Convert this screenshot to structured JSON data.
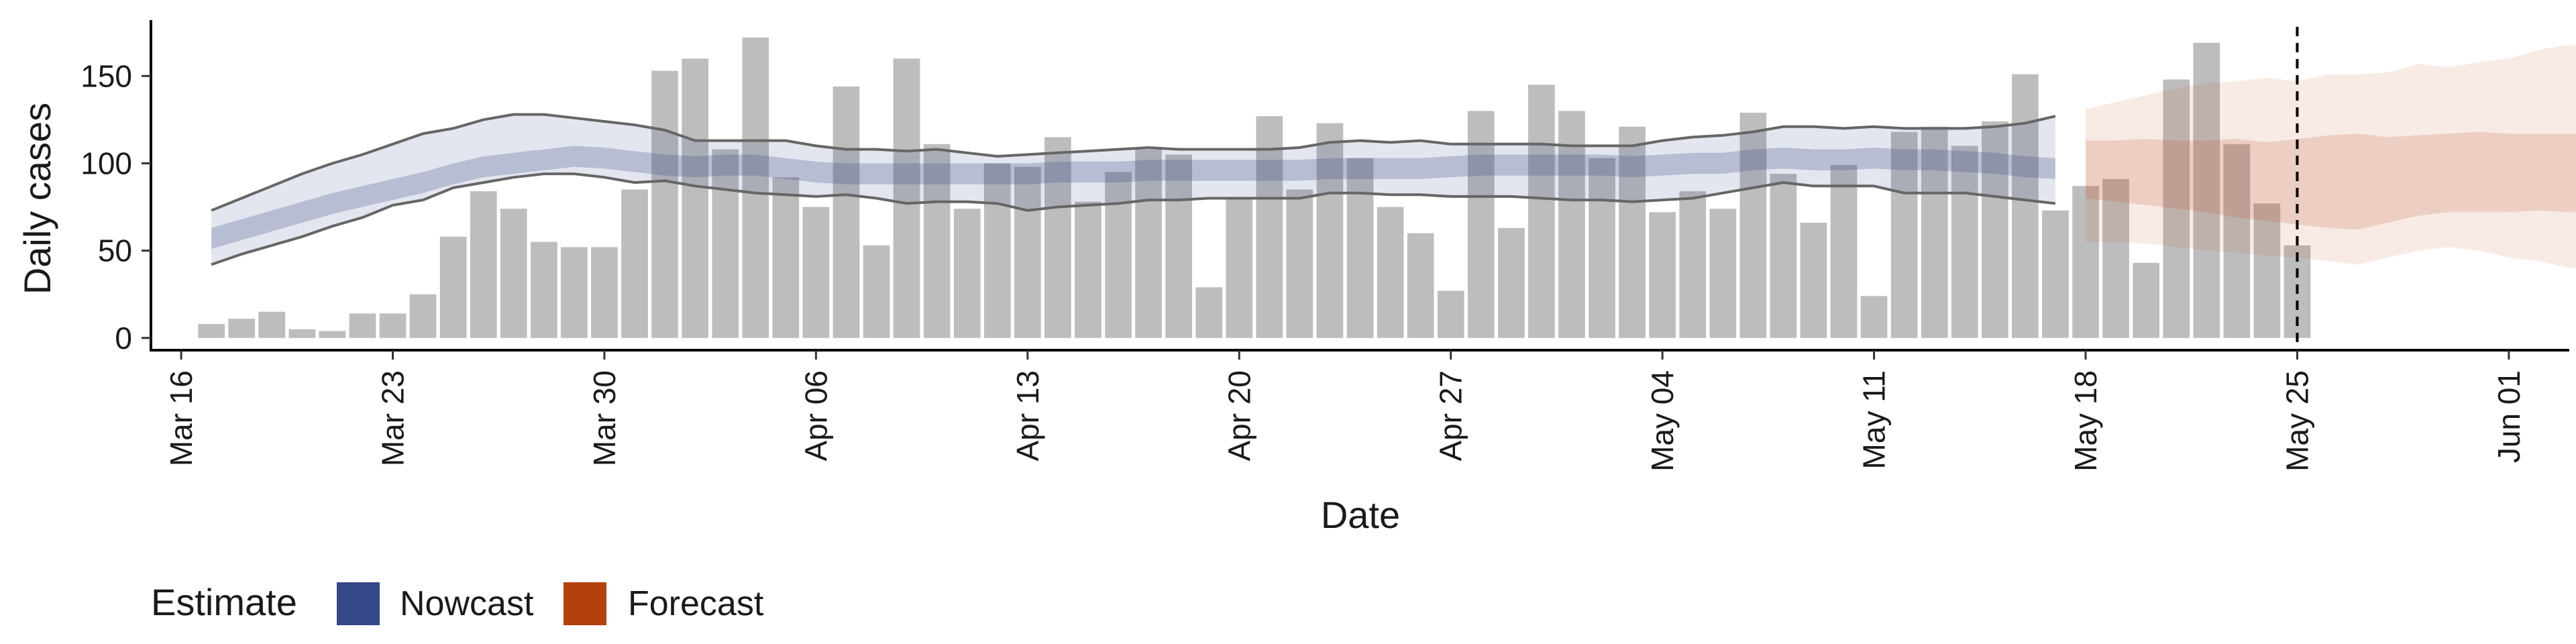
{
  "chart_data": {
    "type": "bar",
    "xlabel": "Date",
    "ylabel": "Daily cases",
    "x_range": [
      "2020-03-15",
      "2020-06-03"
    ],
    "ylim": [
      -7,
      182
    ],
    "y_ticks": [
      0,
      50,
      100,
      150
    ],
    "x_ticks": [
      {
        "date": "2020-03-16",
        "label": "Mar 16"
      },
      {
        "date": "2020-03-23",
        "label": "Mar 23"
      },
      {
        "date": "2020-03-30",
        "label": "Mar 30"
      },
      {
        "date": "2020-04-06",
        "label": "Apr 06"
      },
      {
        "date": "2020-04-13",
        "label": "Apr 13"
      },
      {
        "date": "2020-04-20",
        "label": "Apr 20"
      },
      {
        "date": "2020-04-27",
        "label": "Apr 27"
      },
      {
        "date": "2020-05-04",
        "label": "May 04"
      },
      {
        "date": "2020-05-11",
        "label": "May 11"
      },
      {
        "date": "2020-05-18",
        "label": "May 18"
      },
      {
        "date": "2020-05-25",
        "label": "May 25"
      },
      {
        "date": "2020-06-01",
        "label": "Jun 01"
      }
    ],
    "grid": false,
    "bar_color": "#bdbdbd",
    "bars": {
      "start": "2020-03-17",
      "values": [
        8,
        11,
        15,
        5,
        4,
        14,
        14,
        25,
        58,
        84,
        74,
        55,
        52,
        52,
        85,
        153,
        160,
        108,
        172,
        92,
        75,
        144,
        53,
        160,
        111,
        74,
        100,
        98,
        115,
        78,
        95,
        108,
        105,
        29,
        80,
        127,
        85,
        123,
        103,
        75,
        60,
        27,
        130,
        63,
        145,
        130,
        103,
        121,
        72,
        84,
        74,
        129,
        94,
        66,
        99,
        24,
        118,
        121,
        110,
        124,
        151,
        73,
        87,
        91,
        43,
        148,
        169,
        111,
        77,
        53
      ]
    },
    "nowcast": {
      "color": "#3a4e8a",
      "start": "2020-03-17",
      "median": [
        57,
        62,
        67,
        72,
        77,
        81,
        85,
        89,
        94,
        98,
        100,
        102,
        104,
        103,
        101,
        99,
        98,
        99,
        99,
        97,
        95,
        94,
        94,
        94,
        94,
        94,
        94,
        94,
        95,
        95,
        95,
        96,
        96,
        96,
        96,
        96,
        96,
        97,
        97,
        97,
        97,
        98,
        99,
        99,
        99,
        99,
        99,
        98,
        99,
        100,
        100,
        102,
        103,
        102,
        102,
        103,
        102,
        102,
        101,
        100,
        98,
        97
      ],
      "inner_low": [
        51,
        56,
        61,
        66,
        71,
        75,
        79,
        83,
        88,
        92,
        94,
        96,
        98,
        97,
        95,
        93,
        92,
        93,
        93,
        91,
        89,
        88,
        88,
        88,
        88,
        88,
        88,
        88,
        89,
        89,
        89,
        90,
        90,
        90,
        90,
        90,
        90,
        91,
        91,
        91,
        91,
        92,
        93,
        93,
        93,
        93,
        93,
        92,
        93,
        94,
        94,
        96,
        97,
        96,
        96,
        97,
        96,
        96,
        95,
        94,
        92,
        91
      ],
      "inner_high": [
        63,
        68,
        73,
        78,
        83,
        87,
        91,
        95,
        100,
        104,
        106,
        108,
        110,
        109,
        107,
        105,
        104,
        105,
        105,
        103,
        101,
        100,
        100,
        100,
        100,
        100,
        100,
        100,
        101,
        101,
        101,
        102,
        102,
        102,
        102,
        102,
        102,
        103,
        103,
        103,
        103,
        104,
        105,
        105,
        105,
        105,
        105,
        104,
        105,
        106,
        106,
        108,
        109,
        108,
        108,
        109,
        108,
        108,
        107,
        106,
        104,
        103
      ],
      "outer_low": [
        42,
        48,
        53,
        58,
        64,
        69,
        76,
        79,
        86,
        89,
        92,
        94,
        94,
        92,
        89,
        90,
        87,
        85,
        83,
        82,
        81,
        82,
        80,
        77,
        78,
        78,
        77,
        73,
        75,
        76,
        77,
        79,
        79,
        80,
        80,
        80,
        80,
        83,
        83,
        82,
        82,
        81,
        81,
        81,
        80,
        79,
        79,
        78,
        79,
        80,
        83,
        86,
        89,
        87,
        87,
        87,
        83,
        83,
        83,
        81,
        79,
        77
      ],
      "outer_high": [
        73,
        80,
        87,
        94,
        100,
        105,
        111,
        117,
        120,
        125,
        128,
        128,
        126,
        124,
        122,
        119,
        113,
        113,
        113,
        113,
        110,
        108,
        108,
        107,
        108,
        106,
        104,
        105,
        106,
        107,
        108,
        109,
        108,
        108,
        108,
        108,
        109,
        112,
        113,
        112,
        113,
        111,
        111,
        111,
        111,
        110,
        110,
        110,
        113,
        115,
        116,
        118,
        121,
        121,
        120,
        121,
        120,
        120,
        120,
        121,
        123,
        127
      ]
    },
    "forecast": {
      "color": "#c25b35",
      "start": "2020-05-18",
      "median": [
        96,
        96,
        96,
        96,
        96,
        96,
        95,
        94,
        94,
        94,
        94,
        94,
        94,
        94,
        95,
        95,
        95,
        95,
        95
      ],
      "inner_low": [
        80,
        78,
        76,
        74,
        72,
        69,
        67,
        65,
        63,
        62,
        66,
        70,
        72,
        72,
        72,
        73,
        72,
        72,
        72
      ],
      "inner_high": [
        113,
        113,
        114,
        113,
        113,
        114,
        112,
        114,
        116,
        117,
        115,
        116,
        117,
        118,
        117,
        117,
        117,
        117,
        117
      ],
      "outer_low": [
        55,
        55,
        54,
        52,
        50,
        49,
        47,
        46,
        44,
        42,
        46,
        50,
        52,
        50,
        46,
        44,
        40,
        40,
        40
      ],
      "outer_high": [
        131,
        135,
        139,
        143,
        146,
        147,
        149,
        147,
        151,
        151,
        152,
        157,
        155,
        158,
        160,
        165,
        168,
        165,
        170
      ]
    },
    "reference_line": {
      "date": "2020-05-25",
      "style": "dashed"
    },
    "legend": {
      "title": "Estimate",
      "position": "bottom-left",
      "items": [
        {
          "name": "Nowcast",
          "color": "#34488a"
        },
        {
          "name": "Forecast",
          "color": "#b5400f"
        }
      ]
    }
  }
}
